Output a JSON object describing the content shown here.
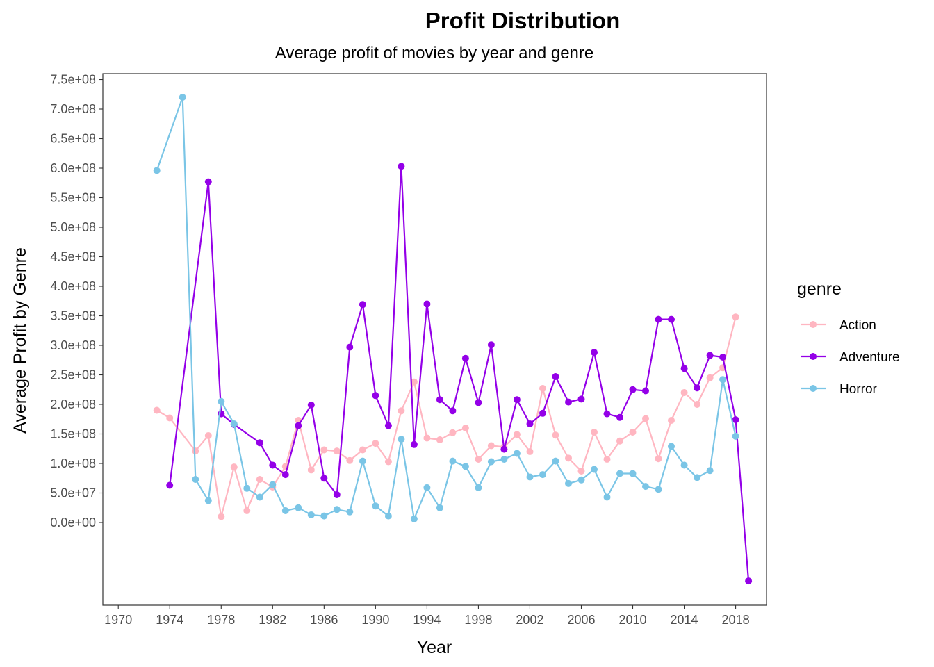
{
  "chart_data": {
    "type": "line",
    "title": "Profit Distribution",
    "subtitle": "Average profit of movies by year and genre",
    "xlabel": "Year",
    "ylabel": "Average Profit by Genre",
    "xlim": [
      1968.8,
      2020.4
    ],
    "ylim": [
      -140000000,
      760000000
    ],
    "x_ticks": [
      1970,
      1974,
      1978,
      1982,
      1986,
      1990,
      1994,
      1998,
      2002,
      2006,
      2010,
      2014,
      2018
    ],
    "x_tick_labels": [
      "1970",
      "1974",
      "1978",
      "1982",
      "1986",
      "1990",
      "1994",
      "1998",
      "2002",
      "2006",
      "2010",
      "2014",
      "2018"
    ],
    "y_ticks": [
      0,
      50000000,
      100000000,
      150000000,
      200000000,
      250000000,
      300000000,
      350000000,
      400000000,
      450000000,
      500000000,
      550000000,
      600000000,
      650000000,
      700000000,
      750000000
    ],
    "y_tick_labels": [
      "0.0e+00",
      "5.0e+07",
      "1.0e+08",
      "1.5e+08",
      "2.0e+08",
      "2.5e+08",
      "3.0e+08",
      "3.5e+08",
      "4.0e+08",
      "4.5e+08",
      "5.0e+08",
      "5.5e+08",
      "6.0e+08",
      "6.5e+08",
      "7.0e+08",
      "7.5e+08"
    ],
    "grid": false,
    "legend": {
      "title": "genre",
      "position": "right"
    },
    "series": [
      {
        "name": "Action",
        "color": "#FFB6C1",
        "x": [
          1973,
          1974,
          1976,
          1977,
          1978,
          1979,
          1980,
          1981,
          1982,
          1983,
          1984,
          1985,
          1986,
          1987,
          1988,
          1989,
          1990,
          1991,
          1992,
          1993,
          1994,
          1995,
          1996,
          1997,
          1998,
          1999,
          2000,
          2001,
          2002,
          2003,
          2004,
          2005,
          2006,
          2007,
          2008,
          2009,
          2010,
          2011,
          2012,
          2013,
          2014,
          2015,
          2016,
          2017,
          2018
        ],
        "y": [
          190000000,
          177000000,
          121000000,
          147000000,
          10000000,
          94000000,
          20000000,
          73000000,
          60000000,
          95000000,
          173000000,
          89000000,
          123000000,
          121000000,
          105000000,
          123000000,
          134000000,
          103000000,
          189000000,
          238000000,
          143000000,
          140000000,
          152000000,
          160000000,
          107000000,
          130000000,
          128000000,
          149000000,
          120000000,
          227000000,
          148000000,
          109000000,
          87000000,
          153000000,
          107000000,
          138000000,
          153000000,
          176000000,
          108000000,
          173000000,
          220000000,
          200000000,
          245000000,
          262000000,
          348000000
        ]
      },
      {
        "name": "Adventure",
        "color": "#9400E8",
        "x": [
          1974,
          1977,
          1978,
          1979,
          1981,
          1982,
          1983,
          1984,
          1985,
          1986,
          1987,
          1988,
          1989,
          1990,
          1991,
          1992,
          1993,
          1994,
          1995,
          1996,
          1997,
          1998,
          1999,
          2000,
          2001,
          2002,
          2003,
          2004,
          2005,
          2006,
          2007,
          2008,
          2009,
          2010,
          2011,
          2012,
          2013,
          2014,
          2015,
          2016,
          2017,
          2018,
          2019
        ],
        "y": [
          63000000,
          577000000,
          184000000,
          166000000,
          135000000,
          97000000,
          81000000,
          164000000,
          199000000,
          75000000,
          47000000,
          297000000,
          369000000,
          215000000,
          164000000,
          603000000,
          132000000,
          370000000,
          208000000,
          189000000,
          278000000,
          203000000,
          301000000,
          124000000,
          208000000,
          167000000,
          185000000,
          247000000,
          204000000,
          209000000,
          288000000,
          184000000,
          178000000,
          225000000,
          223000000,
          344000000,
          344000000,
          261000000,
          228000000,
          283000000,
          280000000,
          174000000,
          -99000000
        ]
      },
      {
        "name": "Horror",
        "color": "#7AC5E6",
        "x": [
          1973,
          1975,
          1976,
          1977,
          1978,
          1979,
          1980,
          1981,
          1982,
          1983,
          1984,
          1985,
          1986,
          1987,
          1988,
          1989,
          1990,
          1991,
          1992,
          1993,
          1994,
          1995,
          1996,
          1997,
          1998,
          1999,
          2000,
          2001,
          2002,
          2003,
          2004,
          2005,
          2006,
          2007,
          2008,
          2009,
          2010,
          2011,
          2012,
          2013,
          2014,
          2015,
          2016,
          2017,
          2018
        ],
        "y": [
          596000000,
          720000000,
          73000000,
          37000000,
          205000000,
          167000000,
          58000000,
          43000000,
          64000000,
          20000000,
          25000000,
          13000000,
          11000000,
          22000000,
          18000000,
          104000000,
          28000000,
          11000000,
          141000000,
          6000000,
          59000000,
          25000000,
          104000000,
          95000000,
          59000000,
          103000000,
          107000000,
          117000000,
          77000000,
          81000000,
          104000000,
          66000000,
          72000000,
          90000000,
          43000000,
          83000000,
          83000000,
          61000000,
          56000000,
          129000000,
          97000000,
          76000000,
          88000000,
          242000000,
          146000000
        ]
      }
    ]
  }
}
